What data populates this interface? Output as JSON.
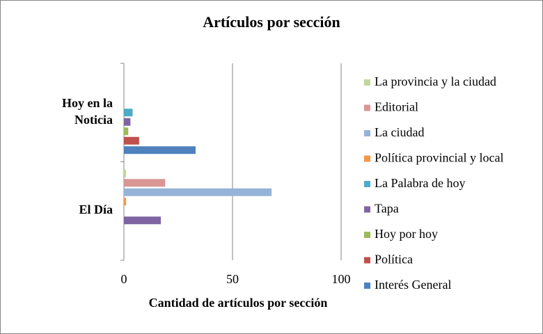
{
  "chart_data": {
    "type": "bar",
    "orientation": "horizontal",
    "title": "Artículos por sección",
    "x_label": "Cantidad de artículos por sección",
    "categories": [
      "Hoy en la Noticia",
      "El Día"
    ],
    "series": [
      {
        "name": "La provincia y la ciudad",
        "color": "#c3d69b",
        "values": [
          0,
          1
        ]
      },
      {
        "name": "Editorial",
        "color": "#d99694",
        "values": [
          0,
          19
        ]
      },
      {
        "name": "La ciudad",
        "color": "#95b3d7",
        "values": [
          0,
          68
        ]
      },
      {
        "name": "Política provincial y local",
        "color": "#f79646",
        "values": [
          0,
          1
        ]
      },
      {
        "name": "La Palabra de hoy",
        "color": "#4bacc6",
        "values": [
          4,
          0
        ]
      },
      {
        "name": "Tapa",
        "color": "#8064a2",
        "values": [
          3,
          17
        ]
      },
      {
        "name": "Hoy por hoy",
        "color": "#9bbb59",
        "values": [
          2,
          0
        ]
      },
      {
        "name": "Política",
        "color": "#c0504d",
        "values": [
          7,
          0
        ]
      },
      {
        "name": "Interés General",
        "color": "#4f81bd",
        "values": [
          33,
          0
        ]
      }
    ],
    "xlim": [
      0,
      100
    ],
    "xticks": [
      0,
      50,
      100
    ],
    "grid": true,
    "legend": "right"
  }
}
